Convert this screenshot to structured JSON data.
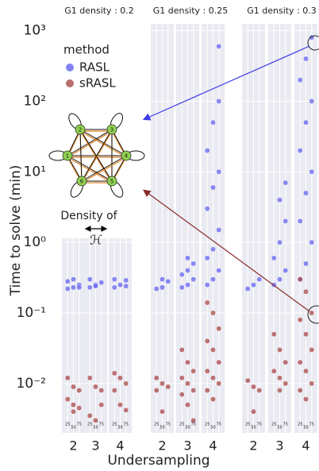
{
  "chart_data": {
    "type": "scatter",
    "ylabel": "Time to solve (min)",
    "xlabel": "Undersampling",
    "ylog": true,
    "ylim": [
      0.002,
      1250
    ],
    "yticks": [
      {
        "value": 0.01,
        "label": "10⁻²"
      },
      {
        "value": 0.1,
        "label": "10⁻¹"
      },
      {
        "value": 1,
        "label": "10⁰"
      },
      {
        "value": 10,
        "label": "10¹"
      },
      {
        "value": 100,
        "label": "10²"
      },
      {
        "value": 1000,
        "label": "10³"
      }
    ],
    "xlim": [
      0,
      100
    ],
    "xticks": [
      25,
      50,
      75
    ],
    "grid": true,
    "legend_title": "method",
    "series": [
      {
        "name": "RASL",
        "color": "#6464f0"
      },
      {
        "name": "sRASL",
        "color": "#a84848"
      }
    ],
    "annotation": [
      "Density of",
      "ℋ"
    ],
    "inset_nodes": [
      "1",
      "2",
      "3",
      "4",
      "5",
      "6"
    ],
    "panels": [
      {
        "title": "G1 density : 0.2",
        "groups": [
          {
            "category": 2,
            "series": [
              {
                "x": [
                  25,
                  50,
                  75,
                  25,
                  50,
                  75
                ],
                "y": [
                  0.22,
                  0.23,
                  0.25,
                  0.28,
                  0.3,
                  0.23
                ]
              },
              {
                "x": [
                  25,
                  50,
                  75,
                  25,
                  50,
                  75,
                  50
                ],
                "y": [
                  0.012,
                  0.009,
                  0.008,
                  0.006,
                  0.004,
                  0.0045,
                  0.005
                ]
              }
            ]
          },
          {
            "category": 3,
            "series": [
              {
                "x": [
                  25,
                  50,
                  75,
                  25,
                  50
                ],
                "y": [
                  0.23,
                  0.25,
                  0.27,
                  0.3,
                  0.24
                ]
              },
              {
                "x": [
                  25,
                  50,
                  75,
                  25,
                  50,
                  75
                ],
                "y": [
                  0.012,
                  0.009,
                  0.008,
                  0.0035,
                  0.003,
                  0.005
                ]
              }
            ]
          },
          {
            "category": 4,
            "series": [
              {
                "x": [
                  25,
                  50,
                  75,
                  25,
                  75
                ],
                "y": [
                  0.23,
                  0.25,
                  0.29,
                  0.3,
                  0.24
                ]
              },
              {
                "x": [
                  25,
                  50,
                  75,
                  25,
                  50,
                  75
                ],
                "y": [
                  0.014,
                  0.012,
                  0.01,
                  0.008,
                  0.005,
                  0.0042
                ]
              }
            ]
          }
        ]
      },
      {
        "title": "G1 density : 0.25",
        "groups": [
          {
            "category": 2,
            "series": [
              {
                "x": [
                  25,
                  50,
                  75,
                  50
                ],
                "y": [
                  0.22,
                  0.23,
                  0.28,
                  0.3
                ]
              },
              {
                "x": [
                  25,
                  50,
                  75,
                  25,
                  50
                ],
                "y": [
                  0.012,
                  0.01,
                  0.009,
                  0.008,
                  0.004
                ]
              }
            ]
          },
          {
            "category": 3,
            "series": [
              {
                "x": [
                  25,
                  50,
                  75,
                  25,
                  50,
                  75,
                  50
                ],
                "y": [
                  0.23,
                  0.25,
                  0.3,
                  0.35,
                  0.4,
                  0.5,
                  0.6
                ]
              },
              {
                "x": [
                  25,
                  50,
                  75,
                  25,
                  50,
                  75,
                  25,
                  50,
                  75
                ],
                "y": [
                  0.03,
                  0.02,
                  0.015,
                  0.012,
                  0.01,
                  0.008,
                  0.007,
                  0.005,
                  0.003
                ]
              }
            ]
          },
          {
            "category": 4,
            "series": [
              {
                "x": [
                  25,
                  50,
                  75,
                  25,
                  50,
                  75,
                  25,
                  50,
                  75,
                  25,
                  50,
                  75,
                  75
                ],
                "y": [
                  0.25,
                  0.3,
                  0.4,
                  0.6,
                  0.8,
                  1.5,
                  3,
                  6,
                  10,
                  20,
                  50,
                  100,
                  600
                ]
              },
              {
                "x": [
                  25,
                  50,
                  75,
                  25,
                  50,
                  75,
                  25,
                  50,
                  75,
                  25,
                  50
                ],
                "y": [
                  0.14,
                  0.1,
                  0.06,
                  0.04,
                  0.03,
                  0.02,
                  0.015,
                  0.012,
                  0.01,
                  0.008,
                  0.006
                ]
              }
            ]
          }
        ]
      },
      {
        "title": "G1 density : 0.3",
        "groups": [
          {
            "category": 2,
            "series": [
              {
                "x": [
                  25,
                  50,
                  75
                ],
                "y": [
                  0.22,
                  0.25,
                  0.3
                ]
              },
              {
                "x": [
                  25,
                  50,
                  75,
                  50
                ],
                "y": [
                  0.011,
                  0.009,
                  0.008,
                  0.004
                ]
              }
            ]
          },
          {
            "category": 3,
            "series": [
              {
                "x": [
                  25,
                  50,
                  75,
                  25,
                  50,
                  75,
                  50,
                  75
                ],
                "y": [
                  0.25,
                  0.3,
                  0.4,
                  0.6,
                  1,
                  2,
                  4,
                  7
                ]
              },
              {
                "x": [
                  25,
                  50,
                  75,
                  25,
                  50,
                  75,
                  50
                ],
                "y": [
                  0.05,
                  0.03,
                  0.02,
                  0.015,
                  0.012,
                  0.01,
                  0.008
                ]
              }
            ]
          },
          {
            "category": 4,
            "series": [
              {
                "x": [
                  25,
                  50,
                  75,
                  25,
                  50,
                  75,
                  25,
                  50,
                  75,
                  25,
                  50,
                  75
                ],
                "y": [
                  0.3,
                  0.5,
                  1,
                  2,
                  5,
                  10,
                  20,
                  50,
                  100,
                  200,
                  400,
                  800
                ]
              },
              {
                "x": [
                  25,
                  50,
                  75,
                  25,
                  50,
                  75,
                  25,
                  50,
                  75,
                  25,
                  50
                ],
                "y": [
                  0.3,
                  0.2,
                  0.1,
                  0.08,
                  0.05,
                  0.03,
                  0.02,
                  0.015,
                  0.01,
                  0.008,
                  0.006
                ]
              }
            ]
          }
        ]
      }
    ]
  }
}
